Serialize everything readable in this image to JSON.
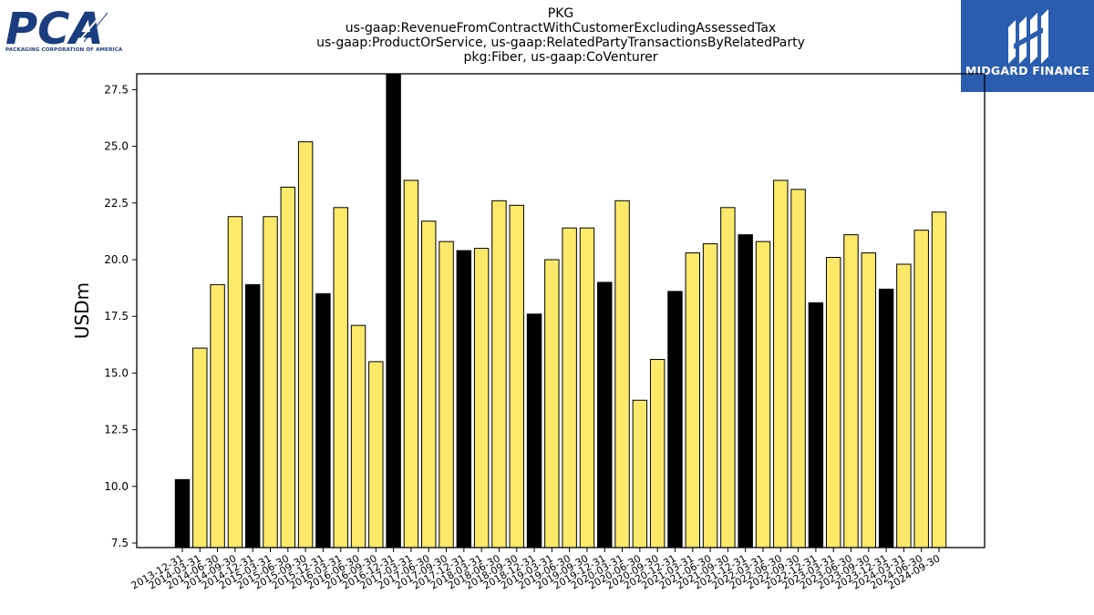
{
  "header": {
    "title_lines": [
      "PKG",
      "us-gaap:RevenueFromContractWithCustomerExcludingAssessedTax",
      "us-gaap:ProductOrService, us-gaap:RelatedPartyTransactionsByRelatedParty",
      "pkg:Fiber, us-gaap:CoVenturer"
    ]
  },
  "logos": {
    "left": {
      "text": "PCA",
      "subtext": "PACKAGING CORPORATION OF AMERICA",
      "color": "#1b3d80"
    },
    "right": {
      "text": "MIDGARD FINANCE",
      "background": "#2a5db0"
    }
  },
  "colors": {
    "bar_highlight": "#000000",
    "bar_default": "#fce96a",
    "bar_edge": "#000000"
  },
  "chart_data": {
    "type": "bar",
    "title": "PKG us-gaap:RevenueFromContractWithCustomerExcludingAssessedTax us-gaap:ProductOrService, us-gaap:RelatedPartyTransactionsByRelatedParty pkg:Fiber, us-gaap:CoVenturer",
    "xlabel": "",
    "ylabel": "USDm",
    "ylim": [
      7.3,
      28.2
    ],
    "yticks": [
      7.5,
      10.0,
      12.5,
      15.0,
      17.5,
      20.0,
      22.5,
      25.0,
      27.5
    ],
    "grid": false,
    "categories": [
      "2013-12-31",
      "2014-03-31",
      "2014-06-30",
      "2014-09-30",
      "2014-12-31",
      "2015-03-31",
      "2015-06-30",
      "2015-09-30",
      "2015-12-31",
      "2016-03-31",
      "2016-06-30",
      "2016-09-30",
      "2016-12-31",
      "2017-03-31",
      "2017-06-30",
      "2017-09-30",
      "2017-12-31",
      "2018-03-31",
      "2018-06-30",
      "2018-09-30",
      "2018-12-31",
      "2019-03-31",
      "2019-06-30",
      "2019-09-30",
      "2019-12-31",
      "2020-03-31",
      "2020-06-30",
      "2020-09-30",
      "2020-12-31",
      "2021-03-31",
      "2021-06-30",
      "2021-09-30",
      "2021-12-31",
      "2022-03-31",
      "2022-06-30",
      "2022-09-30",
      "2022-12-31",
      "2023-03-31",
      "2023-06-30",
      "2023-09-30",
      "2023-12-31",
      "2024-03-31",
      "2024-06-30",
      "2024-09-30"
    ],
    "values": [
      10.3,
      16.1,
      18.9,
      21.9,
      18.9,
      21.9,
      23.2,
      25.2,
      18.5,
      22.3,
      17.1,
      15.5,
      28.2,
      23.5,
      21.7,
      20.8,
      20.4,
      20.5,
      22.6,
      22.4,
      17.6,
      20.0,
      21.4,
      21.4,
      19.0,
      22.6,
      13.8,
      15.6,
      18.6,
      20.3,
      20.7,
      22.3,
      21.1,
      20.8,
      23.5,
      23.1,
      18.1,
      20.1,
      21.1,
      20.3,
      18.7,
      19.8,
      21.3,
      22.1
    ],
    "highlight": [
      true,
      false,
      false,
      false,
      true,
      false,
      false,
      false,
      true,
      false,
      false,
      false,
      true,
      false,
      false,
      false,
      true,
      false,
      false,
      false,
      true,
      false,
      false,
      false,
      true,
      false,
      false,
      false,
      true,
      false,
      false,
      false,
      true,
      false,
      false,
      false,
      true,
      false,
      false,
      false,
      true,
      false,
      false,
      false
    ]
  }
}
